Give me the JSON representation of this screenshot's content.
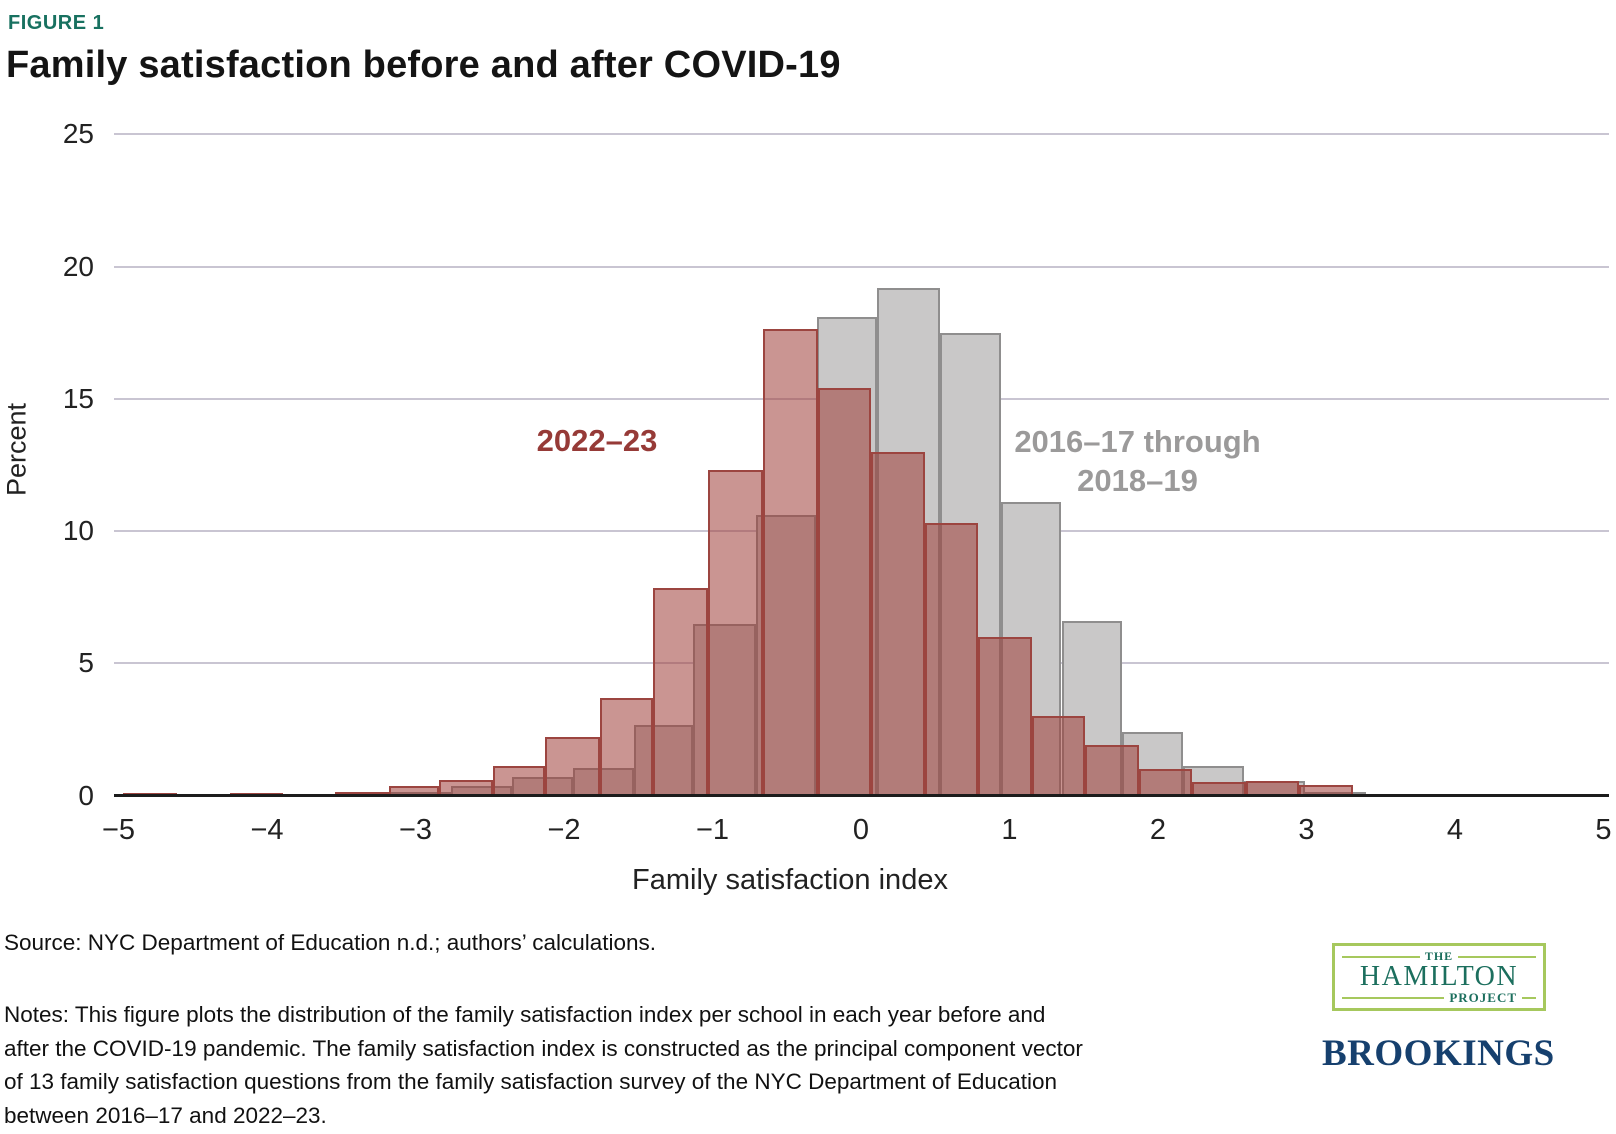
{
  "figure": {
    "tag": "FIGURE 1",
    "title": "Family satisfaction before and after COVID-19"
  },
  "chart_data": {
    "type": "histogram",
    "title": "Family satisfaction before and after COVID-19",
    "xlabel": "Family satisfaction index",
    "ylabel": "Percent",
    "xlim": [
      -5,
      5
    ],
    "ylim": [
      0,
      25
    ],
    "grid": true,
    "x_ticks": [
      {
        "value": -5,
        "label": "−5"
      },
      {
        "value": -4,
        "label": "−4"
      },
      {
        "value": -3,
        "label": "−3"
      },
      {
        "value": -2,
        "label": "−2"
      },
      {
        "value": -1,
        "label": "−1"
      },
      {
        "value": 0,
        "label": "0"
      },
      {
        "value": 1,
        "label": "1"
      },
      {
        "value": 2,
        "label": "2"
      },
      {
        "value": 3,
        "label": "3"
      },
      {
        "value": 4,
        "label": "4"
      },
      {
        "value": 5,
        "label": "5"
      }
    ],
    "y_ticks": [
      {
        "value": 0,
        "label": "0"
      },
      {
        "value": 5,
        "label": "5"
      },
      {
        "value": 10,
        "label": "10"
      },
      {
        "value": 15,
        "label": "15"
      },
      {
        "value": 20,
        "label": "20"
      },
      {
        "value": 25,
        "label": "25"
      }
    ],
    "series": [
      {
        "name": "2016–17 through 2018–19",
        "legend_lines": [
          "2016–17 through",
          "2018–19"
        ],
        "fill": "#c9c8c8",
        "border": "#8f8e8e",
        "bins": [
          [
            -3.17,
            -2.76,
            0.15
          ],
          [
            -2.76,
            -2.35,
            0.35
          ],
          [
            -2.35,
            -1.94,
            0.7
          ],
          [
            -1.94,
            -1.53,
            1.05
          ],
          [
            -1.53,
            -1.13,
            2.65
          ],
          [
            -1.13,
            -0.71,
            6.5
          ],
          [
            -0.71,
            -0.3,
            10.6
          ],
          [
            -0.3,
            0.11,
            18.1
          ],
          [
            0.11,
            0.53,
            19.2
          ],
          [
            0.53,
            0.94,
            17.5
          ],
          [
            0.94,
            1.35,
            11.1
          ],
          [
            1.35,
            1.76,
            6.6
          ],
          [
            1.76,
            2.17,
            2.4
          ],
          [
            2.17,
            2.58,
            1.1
          ],
          [
            2.58,
            2.99,
            0.55
          ],
          [
            2.99,
            3.4,
            0.15
          ]
        ]
      },
      {
        "name": "2022–23",
        "legend_lines": [
          "2022–23"
        ],
        "fill": "rgba(158,62,56,0.55)",
        "border": "#9c4540",
        "bins": [
          [
            -4.97,
            -4.61,
            0.08
          ],
          [
            -4.61,
            -4.25,
            0.04
          ],
          [
            -4.25,
            -3.89,
            0.08
          ],
          [
            -3.89,
            -3.54,
            0.06
          ],
          [
            -3.54,
            -3.18,
            0.15
          ],
          [
            -3.18,
            -2.84,
            0.36
          ],
          [
            -2.84,
            -2.48,
            0.6
          ],
          [
            -2.48,
            -2.13,
            1.1
          ],
          [
            -2.13,
            -1.76,
            2.2
          ],
          [
            -1.76,
            -1.4,
            3.7
          ],
          [
            -1.4,
            -1.03,
            7.85
          ],
          [
            -1.03,
            -0.66,
            12.3
          ],
          [
            -0.66,
            -0.29,
            17.65
          ],
          [
            -0.29,
            0.07,
            15.4
          ],
          [
            0.07,
            0.43,
            13.0
          ],
          [
            0.43,
            0.79,
            10.3
          ],
          [
            0.79,
            1.15,
            6.0
          ],
          [
            1.15,
            1.51,
            3.0
          ],
          [
            1.51,
            1.87,
            1.9
          ],
          [
            1.87,
            2.23,
            1.0
          ],
          [
            2.23,
            2.59,
            0.5
          ],
          [
            2.59,
            2.95,
            0.55
          ],
          [
            2.95,
            3.31,
            0.4
          ]
        ]
      }
    ]
  },
  "legend": {
    "red_label": "2022–23",
    "gray_line1": "2016–17 through",
    "gray_line2": "2018–19"
  },
  "axes": {
    "ylabel": "Percent",
    "xlabel": "Family satisfaction index"
  },
  "footer": {
    "source": "Source: NYC Department of Education n.d.; authors’ calculations.",
    "notes_lines": [
      "Notes: This figure plots the distribution of the family satisfaction index per school in each year before and",
      "after the COVID-19 pandemic. The family satisfaction index is constructed as the principal component vector",
      "of 13 family satisfaction questions from the family satisfaction survey of the NYC Department of Education",
      "between 2016–17 and 2022–23."
    ]
  },
  "logos": {
    "hamilton": {
      "the": "THE",
      "name": "HAMILTON",
      "project": "PROJECT"
    },
    "brookings": "BROOKINGS"
  },
  "colors": {
    "figure_tag": "#187160",
    "red_series_border": "#9c4540",
    "gray_series_fill": "#c9c8c8",
    "hamilton_green": "#a6c85d",
    "hamilton_teal": "#1c6f5e",
    "brookings_navy": "#16406e"
  }
}
